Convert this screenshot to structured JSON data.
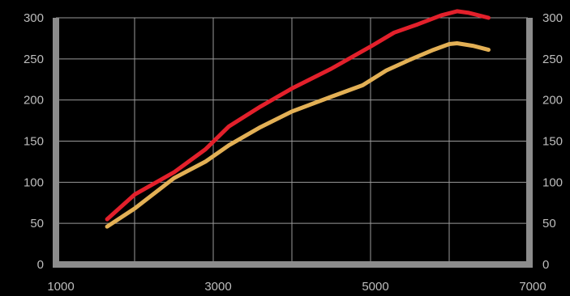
{
  "chart_data": {
    "type": "line",
    "title": "",
    "xlabel": "",
    "ylabel": "",
    "xlim": [
      1000,
      7000
    ],
    "ylim": [
      0,
      300
    ],
    "grid": true,
    "legend": "none",
    "x_ticks": [
      {
        "value": 1000,
        "label": "1000"
      },
      {
        "value": 3000,
        "label": "3000"
      },
      {
        "value": 5000,
        "label": "5000"
      },
      {
        "value": 7000,
        "label": "7000"
      }
    ],
    "x_gridlines": [
      2000,
      3000,
      4000,
      5000,
      6000
    ],
    "y_ticks_left": [
      {
        "value": 0,
        "label": "0"
      },
      {
        "value": 50,
        "label": "50"
      },
      {
        "value": 100,
        "label": "100"
      },
      {
        "value": 150,
        "label": "150"
      },
      {
        "value": 200,
        "label": "200"
      },
      {
        "value": 250,
        "label": "250"
      },
      {
        "value": 300,
        "label": "300"
      }
    ],
    "y_ticks_right": [
      {
        "value": 0,
        "label": "0"
      },
      {
        "value": 50,
        "label": "50"
      },
      {
        "value": 100,
        "label": "100"
      },
      {
        "value": 150,
        "label": "150"
      },
      {
        "value": 200,
        "label": "200"
      },
      {
        "value": 250,
        "label": "250"
      },
      {
        "value": 300,
        "label": "300"
      }
    ],
    "series": [
      {
        "color": "#e3202b",
        "x": [
          1650,
          2000,
          2500,
          2900,
          3200,
          3600,
          4000,
          4500,
          5000,
          5300,
          5600,
          5900,
          6100,
          6250,
          6500
        ],
        "y": [
          55,
          85,
          112,
          140,
          168,
          192,
          214,
          238,
          265,
          282,
          292,
          303,
          308,
          306,
          300
        ]
      },
      {
        "color": "#e3b055",
        "x": [
          1650,
          2000,
          2500,
          2900,
          3200,
          3600,
          4000,
          4500,
          4900,
          5200,
          5500,
          5800,
          6000,
          6100,
          6300,
          6500
        ],
        "y": [
          46,
          68,
          105,
          125,
          145,
          167,
          186,
          204,
          218,
          236,
          249,
          261,
          268,
          269,
          266,
          261
        ]
      }
    ]
  }
}
